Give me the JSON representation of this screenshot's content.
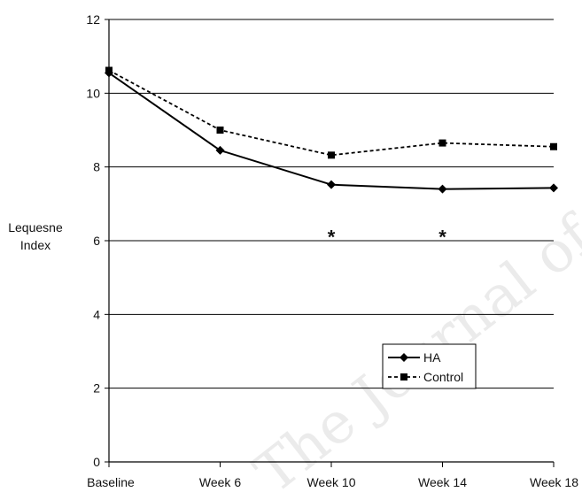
{
  "chart_data": {
    "type": "line",
    "categories": [
      "Baseline",
      "Week 6",
      "Week 10",
      "Week 14",
      "Week 18"
    ],
    "ylabel": "Lequesne Index",
    "ylabel_lines": [
      "Lequesne",
      "Index"
    ],
    "ylim": [
      0,
      12
    ],
    "yticks": [
      "0",
      "2",
      "4",
      "6",
      "8",
      "10",
      "12"
    ],
    "grid": true,
    "legend_position": "bottom-right",
    "series": [
      {
        "name": "HA",
        "values": [
          10.55,
          8.45,
          7.52,
          7.4,
          7.43
        ],
        "style": "solid",
        "marker": "diamond",
        "color": "#000000"
      },
      {
        "name": "Control",
        "values": [
          10.62,
          9.0,
          8.32,
          8.65,
          8.55
        ],
        "style": "dashed",
        "marker": "square",
        "color": "#000000"
      }
    ],
    "annotations": [
      {
        "text": "*",
        "category": "Week 10",
        "y": 6.2
      },
      {
        "text": "*",
        "category": "Week 14",
        "y": 6.2
      }
    ],
    "watermark": "The Journal of"
  }
}
